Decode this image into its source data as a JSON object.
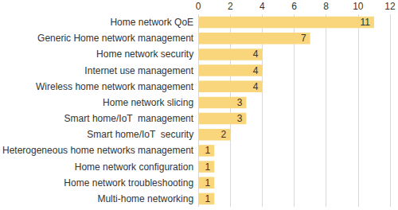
{
  "chart_data": {
    "type": "bar",
    "orientation": "horizontal",
    "categories": [
      "Home network QoE",
      "Generic Home network management",
      "Home network security",
      "Internet use management",
      "Wireless home network management",
      "Home network slicing",
      "Smart home/IoT  management",
      "Smart home/IoT  security",
      "Heterogeneous home networks management",
      "Home network configuration",
      "Home network troubleshooting",
      "Multi-home networking"
    ],
    "values": [
      11,
      7,
      4,
      4,
      4,
      3,
      3,
      2,
      1,
      1,
      1,
      1
    ],
    "color": "#f9d67c",
    "xlim": [
      0,
      12
    ],
    "xticks": [
      0,
      2,
      4,
      6,
      8,
      10,
      12
    ],
    "grid": true,
    "data_labels": true
  }
}
